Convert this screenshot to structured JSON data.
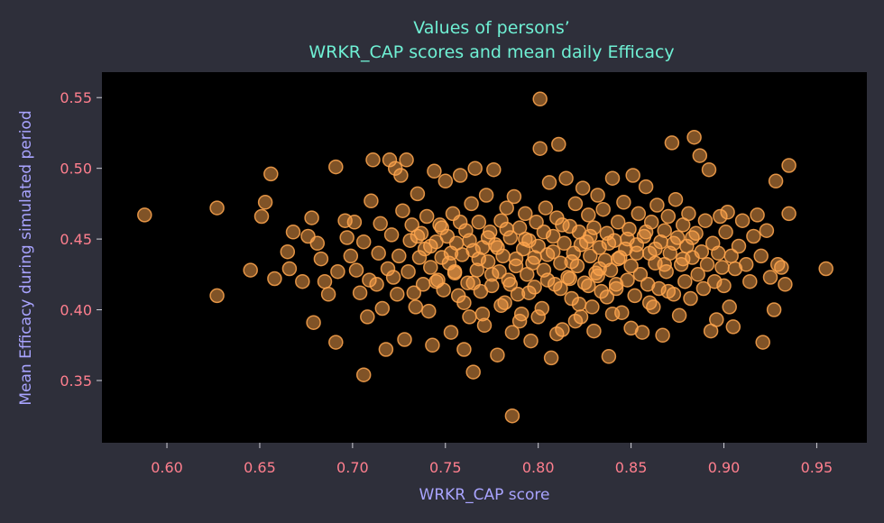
{
  "colors": {
    "background": "#2e2f3a",
    "plot_bg": "#000000",
    "title": "#6ff0d4",
    "axis_label": "#a9a4ff",
    "tick_label": "#ff7f8e",
    "marker": "#ffa64d"
  },
  "chart_data": {
    "type": "scatter",
    "title_lines": [
      "Values of persons’",
      "WRKR_CAP scores and mean daily Efficacy"
    ],
    "xlabel": "WRKR_CAP score",
    "ylabel": "Mean Efficacy during simulated period",
    "xlim": [
      0.565,
      0.977
    ],
    "ylim": [
      0.306,
      0.568
    ],
    "xticks": [
      0.6,
      0.65,
      0.7,
      0.75,
      0.8,
      0.85,
      0.9,
      0.95
    ],
    "yticks": [
      0.35,
      0.4,
      0.45,
      0.5,
      0.55
    ],
    "xtick_labels": [
      "0.60",
      "0.65",
      "0.70",
      "0.75",
      "0.80",
      "0.85",
      "0.90",
      "0.95"
    ],
    "ytick_labels": [
      "0.35",
      "0.40",
      "0.45",
      "0.50",
      "0.55"
    ],
    "grid": false,
    "marker": "circle, semi-transparent orange",
    "points": [
      [
        0.588,
        0.467
      ],
      [
        0.627,
        0.472
      ],
      [
        0.627,
        0.41
      ],
      [
        0.645,
        0.428
      ],
      [
        0.651,
        0.466
      ],
      [
        0.653,
        0.476
      ],
      [
        0.656,
        0.496
      ],
      [
        0.658,
        0.422
      ],
      [
        0.665,
        0.441
      ],
      [
        0.666,
        0.429
      ],
      [
        0.668,
        0.455
      ],
      [
        0.673,
        0.42
      ],
      [
        0.676,
        0.452
      ],
      [
        0.678,
        0.465
      ],
      [
        0.679,
        0.391
      ],
      [
        0.681,
        0.447
      ],
      [
        0.683,
        0.436
      ],
      [
        0.685,
        0.42
      ],
      [
        0.687,
        0.411
      ],
      [
        0.691,
        0.501
      ],
      [
        0.691,
        0.377
      ],
      [
        0.692,
        0.427
      ],
      [
        0.696,
        0.463
      ],
      [
        0.697,
        0.451
      ],
      [
        0.699,
        0.438
      ],
      [
        0.701,
        0.462
      ],
      [
        0.702,
        0.428
      ],
      [
        0.704,
        0.412
      ],
      [
        0.706,
        0.354
      ],
      [
        0.706,
        0.448
      ],
      [
        0.708,
        0.395
      ],
      [
        0.709,
        0.421
      ],
      [
        0.71,
        0.477
      ],
      [
        0.711,
        0.506
      ],
      [
        0.713,
        0.418
      ],
      [
        0.714,
        0.44
      ],
      [
        0.715,
        0.461
      ],
      [
        0.716,
        0.401
      ],
      [
        0.718,
        0.372
      ],
      [
        0.719,
        0.429
      ],
      [
        0.72,
        0.506
      ],
      [
        0.721,
        0.453
      ],
      [
        0.722,
        0.423
      ],
      [
        0.723,
        0.5
      ],
      [
        0.724,
        0.411
      ],
      [
        0.725,
        0.438
      ],
      [
        0.726,
        0.495
      ],
      [
        0.727,
        0.47
      ],
      [
        0.728,
        0.379
      ],
      [
        0.729,
        0.506
      ],
      [
        0.73,
        0.427
      ],
      [
        0.731,
        0.449
      ],
      [
        0.732,
        0.46
      ],
      [
        0.733,
        0.412
      ],
      [
        0.734,
        0.402
      ],
      [
        0.735,
        0.482
      ],
      [
        0.736,
        0.437
      ],
      [
        0.737,
        0.454
      ],
      [
        0.738,
        0.418
      ],
      [
        0.739,
        0.443
      ],
      [
        0.74,
        0.466
      ],
      [
        0.741,
        0.399
      ],
      [
        0.742,
        0.43
      ],
      [
        0.743,
        0.375
      ],
      [
        0.744,
        0.498
      ],
      [
        0.745,
        0.448
      ],
      [
        0.746,
        0.421
      ],
      [
        0.747,
        0.46
      ],
      [
        0.748,
        0.437
      ],
      [
        0.749,
        0.414
      ],
      [
        0.75,
        0.491
      ],
      [
        0.751,
        0.452
      ],
      [
        0.752,
        0.433
      ],
      [
        0.753,
        0.384
      ],
      [
        0.754,
        0.468
      ],
      [
        0.755,
        0.426
      ],
      [
        0.756,
        0.447
      ],
      [
        0.757,
        0.41
      ],
      [
        0.758,
        0.495
      ],
      [
        0.759,
        0.439
      ],
      [
        0.76,
        0.372
      ],
      [
        0.761,
        0.456
      ],
      [
        0.762,
        0.419
      ],
      [
        0.763,
        0.395
      ],
      [
        0.764,
        0.475
      ],
      [
        0.765,
        0.442
      ],
      [
        0.765,
        0.356
      ],
      [
        0.766,
        0.5
      ],
      [
        0.767,
        0.428
      ],
      [
        0.768,
        0.462
      ],
      [
        0.769,
        0.413
      ],
      [
        0.77,
        0.444
      ],
      [
        0.771,
        0.389
      ],
      [
        0.772,
        0.481
      ],
      [
        0.773,
        0.434
      ],
      [
        0.774,
        0.455
      ],
      [
        0.775,
        0.417
      ],
      [
        0.776,
        0.499
      ],
      [
        0.777,
        0.446
      ],
      [
        0.778,
        0.368
      ],
      [
        0.779,
        0.427
      ],
      [
        0.78,
        0.463
      ],
      [
        0.781,
        0.438
      ],
      [
        0.782,
        0.405
      ],
      [
        0.783,
        0.472
      ],
      [
        0.784,
        0.421
      ],
      [
        0.785,
        0.451
      ],
      [
        0.786,
        0.325
      ],
      [
        0.786,
        0.384
      ],
      [
        0.787,
        0.48
      ],
      [
        0.788,
        0.436
      ],
      [
        0.789,
        0.411
      ],
      [
        0.79,
        0.458
      ],
      [
        0.791,
        0.397
      ],
      [
        0.792,
        0.443
      ],
      [
        0.793,
        0.468
      ],
      [
        0.794,
        0.425
      ],
      [
        0.795,
        0.449
      ],
      [
        0.796,
        0.378
      ],
      [
        0.797,
        0.433
      ],
      [
        0.798,
        0.416
      ],
      [
        0.799,
        0.462
      ],
      [
        0.8,
        0.445
      ],
      [
        0.801,
        0.549
      ],
      [
        0.801,
        0.514
      ],
      [
        0.802,
        0.401
      ],
      [
        0.803,
        0.428
      ],
      [
        0.804,
        0.472
      ],
      [
        0.805,
        0.439
      ],
      [
        0.806,
        0.49
      ],
      [
        0.807,
        0.366
      ],
      [
        0.808,
        0.452
      ],
      [
        0.809,
        0.418
      ],
      [
        0.81,
        0.465
      ],
      [
        0.811,
        0.517
      ],
      [
        0.812,
        0.433
      ],
      [
        0.813,
        0.386
      ],
      [
        0.814,
        0.447
      ],
      [
        0.815,
        0.493
      ],
      [
        0.816,
        0.423
      ],
      [
        0.817,
        0.459
      ],
      [
        0.818,
        0.408
      ],
      [
        0.819,
        0.44
      ],
      [
        0.82,
        0.475
      ],
      [
        0.821,
        0.431
      ],
      [
        0.822,
        0.455
      ],
      [
        0.823,
        0.395
      ],
      [
        0.824,
        0.486
      ],
      [
        0.825,
        0.419
      ],
      [
        0.826,
        0.448
      ],
      [
        0.827,
        0.467
      ],
      [
        0.828,
        0.438
      ],
      [
        0.829,
        0.402
      ],
      [
        0.83,
        0.458
      ],
      [
        0.831,
        0.426
      ],
      [
        0.832,
        0.481
      ],
      [
        0.833,
        0.444
      ],
      [
        0.834,
        0.413
      ],
      [
        0.835,
        0.471
      ],
      [
        0.836,
        0.435
      ],
      [
        0.837,
        0.454
      ],
      [
        0.838,
        0.367
      ],
      [
        0.839,
        0.428
      ],
      [
        0.84,
        0.493
      ],
      [
        0.841,
        0.449
      ],
      [
        0.842,
        0.415
      ],
      [
        0.843,
        0.462
      ],
      [
        0.844,
        0.437
      ],
      [
        0.845,
        0.398
      ],
      [
        0.846,
        0.476
      ],
      [
        0.847,
        0.443
      ],
      [
        0.848,
        0.421
      ],
      [
        0.849,
        0.457
      ],
      [
        0.85,
        0.431
      ],
      [
        0.851,
        0.495
      ],
      [
        0.852,
        0.41
      ],
      [
        0.853,
        0.446
      ],
      [
        0.854,
        0.468
      ],
      [
        0.855,
        0.425
      ],
      [
        0.856,
        0.384
      ],
      [
        0.857,
        0.452
      ],
      [
        0.858,
        0.487
      ],
      [
        0.859,
        0.418
      ],
      [
        0.86,
        0.44
      ],
      [
        0.861,
        0.462
      ],
      [
        0.862,
        0.402
      ],
      [
        0.863,
        0.433
      ],
      [
        0.864,
        0.474
      ],
      [
        0.865,
        0.415
      ],
      [
        0.866,
        0.448
      ],
      [
        0.867,
        0.382
      ],
      [
        0.868,
        0.456
      ],
      [
        0.869,
        0.427
      ],
      [
        0.87,
        0.466
      ],
      [
        0.871,
        0.44
      ],
      [
        0.872,
        0.518
      ],
      [
        0.873,
        0.411
      ],
      [
        0.874,
        0.478
      ],
      [
        0.875,
        0.451
      ],
      [
        0.876,
        0.396
      ],
      [
        0.877,
        0.432
      ],
      [
        0.878,
        0.46
      ],
      [
        0.879,
        0.42
      ],
      [
        0.88,
        0.445
      ],
      [
        0.881,
        0.468
      ],
      [
        0.882,
        0.408
      ],
      [
        0.883,
        0.437
      ],
      [
        0.884,
        0.522
      ],
      [
        0.885,
        0.454
      ],
      [
        0.886,
        0.425
      ],
      [
        0.887,
        0.509
      ],
      [
        0.888,
        0.441
      ],
      [
        0.889,
        0.415
      ],
      [
        0.89,
        0.463
      ],
      [
        0.891,
        0.432
      ],
      [
        0.892,
        0.499
      ],
      [
        0.893,
        0.385
      ],
      [
        0.894,
        0.447
      ],
      [
        0.895,
        0.42
      ],
      [
        0.896,
        0.393
      ],
      [
        0.897,
        0.44
      ],
      [
        0.898,
        0.466
      ],
      [
        0.899,
        0.43
      ],
      [
        0.9,
        0.417
      ],
      [
        0.901,
        0.455
      ],
      [
        0.902,
        0.469
      ],
      [
        0.903,
        0.402
      ],
      [
        0.904,
        0.438
      ],
      [
        0.905,
        0.388
      ],
      [
        0.906,
        0.429
      ],
      [
        0.908,
        0.445
      ],
      [
        0.91,
        0.463
      ],
      [
        0.912,
        0.432
      ],
      [
        0.914,
        0.42
      ],
      [
        0.916,
        0.452
      ],
      [
        0.918,
        0.467
      ],
      [
        0.92,
        0.438
      ],
      [
        0.921,
        0.377
      ],
      [
        0.923,
        0.456
      ],
      [
        0.925,
        0.423
      ],
      [
        0.927,
        0.4
      ],
      [
        0.928,
        0.491
      ],
      [
        0.929,
        0.432
      ],
      [
        0.931,
        0.43
      ],
      [
        0.933,
        0.418
      ],
      [
        0.935,
        0.502
      ],
      [
        0.935,
        0.468
      ],
      [
        0.955,
        0.429
      ],
      [
        0.735,
        0.452
      ],
      [
        0.742,
        0.445
      ],
      [
        0.748,
        0.458
      ],
      [
        0.753,
        0.44
      ],
      [
        0.758,
        0.462
      ],
      [
        0.763,
        0.449
      ],
      [
        0.768,
        0.436
      ],
      [
        0.773,
        0.451
      ],
      [
        0.778,
        0.444
      ],
      [
        0.783,
        0.457
      ],
      [
        0.788,
        0.431
      ],
      [
        0.793,
        0.45
      ],
      [
        0.798,
        0.437
      ],
      [
        0.803,
        0.455
      ],
      [
        0.808,
        0.441
      ],
      [
        0.813,
        0.46
      ],
      [
        0.818,
        0.434
      ],
      [
        0.823,
        0.446
      ],
      [
        0.828,
        0.452
      ],
      [
        0.833,
        0.429
      ],
      [
        0.838,
        0.447
      ],
      [
        0.843,
        0.436
      ],
      [
        0.848,
        0.45
      ],
      [
        0.853,
        0.44
      ],
      [
        0.858,
        0.455
      ],
      [
        0.863,
        0.443
      ],
      [
        0.868,
        0.432
      ],
      [
        0.873,
        0.447
      ],
      [
        0.878,
        0.436
      ],
      [
        0.883,
        0.451
      ],
      [
        0.817,
        0.422
      ],
      [
        0.827,
        0.417
      ],
      [
        0.837,
        0.409
      ],
      [
        0.822,
        0.404
      ],
      [
        0.812,
        0.415
      ],
      [
        0.832,
        0.424
      ],
      [
        0.842,
        0.418
      ],
      [
        0.805,
        0.421
      ],
      [
        0.795,
        0.412
      ],
      [
        0.785,
        0.418
      ],
      [
        0.775,
        0.425
      ],
      [
        0.765,
        0.419
      ],
      [
        0.755,
        0.427
      ],
      [
        0.745,
        0.42
      ],
      [
        0.76,
        0.405
      ],
      [
        0.78,
        0.403
      ],
      [
        0.8,
        0.395
      ],
      [
        0.82,
        0.392
      ],
      [
        0.84,
        0.397
      ],
      [
        0.86,
        0.405
      ],
      [
        0.87,
        0.413
      ],
      [
        0.85,
        0.387
      ],
      [
        0.83,
        0.385
      ],
      [
        0.81,
        0.383
      ],
      [
        0.79,
        0.392
      ],
      [
        0.77,
        0.397
      ]
    ]
  }
}
